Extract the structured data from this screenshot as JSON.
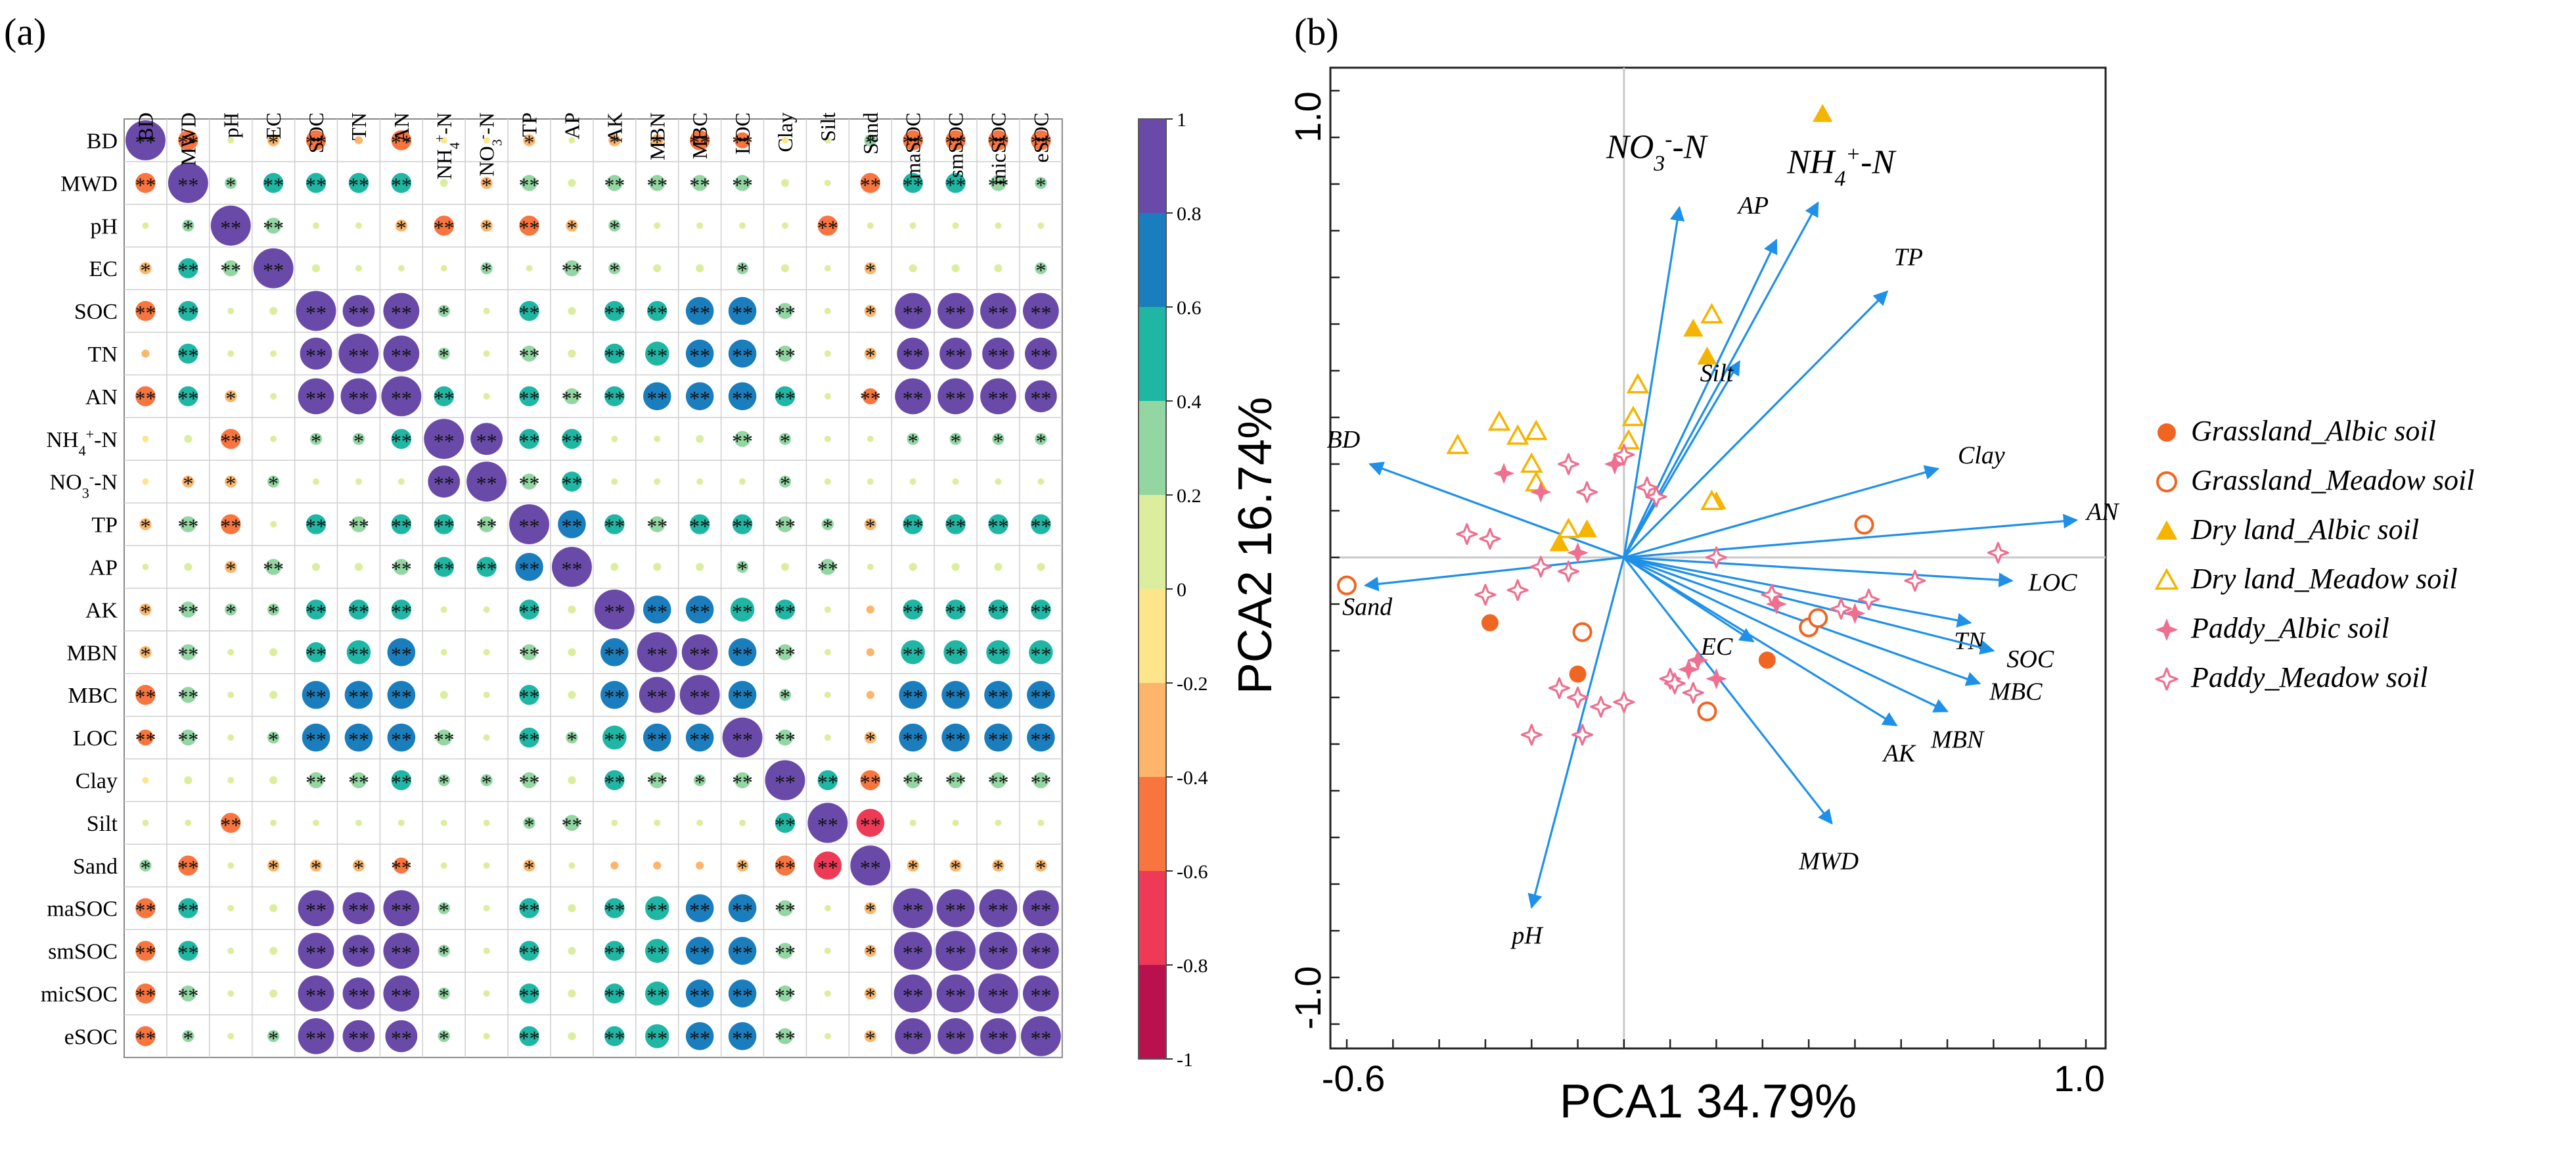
{
  "panel_a": {
    "label": "(a)",
    "variables": [
      "BD",
      "MWD",
      "pH",
      "EC",
      "SOC",
      "TN",
      "AN",
      "NH4+-N",
      "NO3--N",
      "TP",
      "AP",
      "AK",
      "MBN",
      "MBC",
      "LOC",
      "Clay",
      "Silt",
      "Sand",
      "maSOC",
      "smSOC",
      "micSOC",
      "eSOC"
    ],
    "colorbar": {
      "ticks": [
        "1",
        "0.8",
        "0.6",
        "0.4",
        "0.2",
        "0",
        "-0.2",
        "-0.4",
        "-0.6",
        "-0.8",
        "-1"
      ],
      "colors": [
        "#6a4aa8",
        "#1a7dbd",
        "#1fb7a4",
        "#93d6a2",
        "#dcee9e",
        "#fde58c",
        "#fdb56b",
        "#f9753f",
        "#ee3a56",
        "#b8114e"
      ]
    }
  },
  "panel_b": {
    "label": "(b)",
    "legend": [
      {
        "label": "Grassland_Albic soil",
        "marker": "filled-circle",
        "color": "#f06522"
      },
      {
        "label": "Grassland_Meadow soil",
        "marker": "open-circle",
        "color": "#f06522"
      },
      {
        "label": "Dry land_Albic soil",
        "marker": "filled-triangle",
        "color": "#f5b400"
      },
      {
        "label": "Dry land_Meadow soil",
        "marker": "open-triangle",
        "color": "#f5b400"
      },
      {
        "label": "Paddy_Albic soil",
        "marker": "filled-star",
        "color": "#ee6f8f"
      },
      {
        "label": "Paddy_Meadow soil",
        "marker": "open-star",
        "color": "#ee6f8f"
      }
    ]
  },
  "chart_data": [
    {
      "type": "heatmap",
      "title": "",
      "subtype": "correlation-matrix (upper/lower full)",
      "variables": [
        "BD",
        "MWD",
        "pH",
        "EC",
        "SOC",
        "TN",
        "AN",
        "NH4+-N",
        "NO3--N",
        "TP",
        "AP",
        "AK",
        "MBN",
        "MBC",
        "LOC",
        "Clay",
        "Silt",
        "Sand",
        "maSOC",
        "smSOC",
        "micSOC",
        "eSOC"
      ],
      "value_range": [
        -1,
        1
      ],
      "values": [
        [
          1,
          -0.5,
          0.1,
          -0.3,
          -0.5,
          -0.2,
          -0.5,
          -0.1,
          -0.1,
          -0.3,
          0.1,
          -0.3,
          -0.3,
          -0.5,
          -0.4,
          -0.1,
          0.1,
          0.3,
          -0.5,
          -0.5,
          -0.5,
          -0.5
        ],
        [
          -0.5,
          1,
          0.3,
          0.5,
          0.5,
          0.5,
          0.5,
          0.2,
          -0.3,
          0.4,
          0.2,
          0.4,
          0.4,
          0.4,
          0.4,
          0.2,
          0.1,
          -0.5,
          0.5,
          0.5,
          0.4,
          0.3
        ],
        [
          0.1,
          0.3,
          1,
          0.4,
          0.1,
          0.1,
          -0.3,
          -0.5,
          -0.3,
          -0.5,
          -0.3,
          0.3,
          0.1,
          0.1,
          0.1,
          0.1,
          -0.5,
          0.1,
          0.1,
          0.1,
          0.1,
          0.1
        ],
        [
          -0.3,
          0.5,
          0.4,
          1,
          0.2,
          0.1,
          0.1,
          0.1,
          0.3,
          0.1,
          0.4,
          0.3,
          0.2,
          0.2,
          0.3,
          0.2,
          0.1,
          -0.3,
          0.2,
          0.2,
          0.2,
          0.3
        ],
        [
          -0.5,
          0.5,
          0.1,
          0.2,
          1,
          0.8,
          0.9,
          0.3,
          0.1,
          0.5,
          0.2,
          0.5,
          0.5,
          0.7,
          0.7,
          0.4,
          0.1,
          -0.3,
          0.9,
          0.9,
          0.9,
          0.9
        ],
        [
          -0.2,
          0.5,
          0.1,
          0.1,
          0.8,
          1,
          0.9,
          0.3,
          0.1,
          0.4,
          0.2,
          0.5,
          0.6,
          0.7,
          0.7,
          0.4,
          0.1,
          -0.3,
          0.8,
          0.8,
          0.8,
          0.8
        ],
        [
          -0.5,
          0.5,
          -0.3,
          0.1,
          0.9,
          0.9,
          1,
          0.5,
          0.1,
          0.5,
          0.4,
          0.5,
          0.7,
          0.7,
          0.7,
          0.5,
          0.1,
          -0.4,
          0.9,
          0.9,
          0.9,
          0.8
        ],
        [
          -0.1,
          0.2,
          -0.5,
          0.1,
          0.3,
          0.3,
          0.5,
          1,
          0.8,
          0.5,
          0.5,
          0.1,
          0.1,
          0.2,
          0.4,
          0.3,
          0.1,
          0.1,
          0.3,
          0.3,
          0.3,
          0.3
        ],
        [
          -0.1,
          -0.3,
          -0.3,
          0.3,
          0.1,
          0.1,
          0.1,
          0.8,
          1,
          0.4,
          0.5,
          0.1,
          0.1,
          0.1,
          0.1,
          0.3,
          0.1,
          0.1,
          0.1,
          0.1,
          0.1,
          0.1
        ],
        [
          -0.3,
          0.4,
          -0.5,
          0.1,
          0.5,
          0.4,
          0.5,
          0.5,
          0.4,
          1,
          0.7,
          0.5,
          0.4,
          0.5,
          0.5,
          0.4,
          0.3,
          -0.3,
          0.5,
          0.5,
          0.5,
          0.5
        ],
        [
          0.1,
          0.2,
          -0.3,
          0.4,
          0.2,
          0.2,
          0.4,
          0.5,
          0.5,
          0.7,
          1,
          0.2,
          0.2,
          0.2,
          0.3,
          0.2,
          0.4,
          0.1,
          0.2,
          0.2,
          0.2,
          0.2
        ],
        [
          -0.3,
          0.4,
          0.3,
          0.3,
          0.5,
          0.5,
          0.5,
          0.1,
          0.1,
          0.5,
          0.2,
          1,
          0.7,
          0.7,
          0.6,
          0.5,
          0.1,
          -0.2,
          0.5,
          0.5,
          0.5,
          0.5
        ],
        [
          -0.3,
          0.4,
          0.1,
          0.2,
          0.5,
          0.6,
          0.7,
          0.1,
          0.1,
          0.4,
          0.2,
          0.7,
          1,
          0.9,
          0.7,
          0.4,
          0.1,
          -0.2,
          0.6,
          0.6,
          0.6,
          0.6
        ],
        [
          -0.5,
          0.4,
          0.1,
          0.2,
          0.7,
          0.7,
          0.7,
          0.2,
          0.1,
          0.5,
          0.2,
          0.7,
          0.9,
          1,
          0.7,
          0.3,
          0.1,
          -0.2,
          0.7,
          0.7,
          0.7,
          0.7
        ],
        [
          -0.4,
          0.4,
          0.1,
          0.3,
          0.7,
          0.7,
          0.7,
          0.4,
          0.1,
          0.5,
          0.3,
          0.6,
          0.7,
          0.7,
          1,
          0.4,
          0.1,
          -0.3,
          0.7,
          0.7,
          0.7,
          0.7
        ],
        [
          -0.1,
          0.2,
          0.1,
          0.2,
          0.4,
          0.4,
          0.5,
          0.3,
          0.3,
          0.4,
          0.2,
          0.5,
          0.4,
          0.3,
          0.4,
          1,
          0.5,
          -0.5,
          0.4,
          0.4,
          0.4,
          0.4
        ],
        [
          0.1,
          0.1,
          -0.5,
          0.1,
          0.1,
          0.1,
          0.1,
          0.1,
          0.1,
          0.3,
          0.4,
          0.1,
          0.1,
          0.1,
          0.1,
          0.5,
          1,
          -0.7,
          0.1,
          0.1,
          0.1,
          0.1
        ],
        [
          0.3,
          -0.5,
          0.1,
          -0.3,
          -0.3,
          -0.3,
          -0.4,
          0.1,
          0.1,
          -0.3,
          0.1,
          -0.2,
          -0.2,
          -0.2,
          -0.3,
          -0.5,
          -0.7,
          1,
          -0.3,
          -0.3,
          -0.3,
          -0.3
        ],
        [
          -0.5,
          0.5,
          0.1,
          0.2,
          0.9,
          0.8,
          0.9,
          0.3,
          0.1,
          0.5,
          0.2,
          0.5,
          0.6,
          0.7,
          0.7,
          0.4,
          0.1,
          -0.3,
          1,
          0.95,
          0.95,
          0.9
        ],
        [
          -0.5,
          0.5,
          0.1,
          0.2,
          0.9,
          0.8,
          0.9,
          0.3,
          0.1,
          0.5,
          0.2,
          0.5,
          0.6,
          0.7,
          0.7,
          0.4,
          0.1,
          -0.3,
          0.95,
          1,
          0.95,
          0.9
        ],
        [
          -0.5,
          0.4,
          0.1,
          0.2,
          0.9,
          0.8,
          0.9,
          0.3,
          0.1,
          0.5,
          0.2,
          0.5,
          0.6,
          0.7,
          0.7,
          0.4,
          0.1,
          -0.3,
          0.95,
          0.95,
          1,
          0.9
        ],
        [
          -0.5,
          0.3,
          0.1,
          0.3,
          0.9,
          0.8,
          0.8,
          0.3,
          0.1,
          0.5,
          0.2,
          0.5,
          0.6,
          0.7,
          0.7,
          0.4,
          0.1,
          -0.3,
          0.9,
          0.9,
          0.9,
          1
        ]
      ],
      "significance_marks": [
        "*",
        "**"
      ],
      "legend": "right colorbar"
    },
    {
      "type": "scatter",
      "subtype": "PCA biplot",
      "xlabel": "PCA1 34.79%",
      "ylabel": "PCA2 16.74%",
      "xlim": [
        -0.6,
        1.0
      ],
      "ylim": [
        -1.0,
        1.0
      ],
      "x_ticks": [
        "-0.6",
        "1.0"
      ],
      "y_ticks": [
        "1.0",
        "-1.0"
      ],
      "loadings": [
        {
          "name": "BD",
          "x": -0.55,
          "y": 0.2
        },
        {
          "name": "Sand",
          "x": -0.56,
          "y": -0.06
        },
        {
          "name": "pH",
          "x": -0.2,
          "y": -0.75
        },
        {
          "name": "NO3--N",
          "x": 0.12,
          "y": 0.75
        },
        {
          "name": "NH4+-N",
          "x": 0.42,
          "y": 0.76
        },
        {
          "name": "AP",
          "x": 0.33,
          "y": 0.68
        },
        {
          "name": "TP",
          "x": 0.57,
          "y": 0.57
        },
        {
          "name": "Silt",
          "x": 0.25,
          "y": 0.42
        },
        {
          "name": "Clay",
          "x": 0.68,
          "y": 0.19
        },
        {
          "name": "AN",
          "x": 0.98,
          "y": 0.08
        },
        {
          "name": "LOC",
          "x": 0.84,
          "y": -0.05
        },
        {
          "name": "TN",
          "x": 0.75,
          "y": -0.14
        },
        {
          "name": "SOC",
          "x": 0.8,
          "y": -0.2
        },
        {
          "name": "MBC",
          "x": 0.77,
          "y": -0.27
        },
        {
          "name": "MBN",
          "x": 0.7,
          "y": -0.33
        },
        {
          "name": "AK",
          "x": 0.59,
          "y": -0.36
        },
        {
          "name": "EC",
          "x": 0.28,
          "y": -0.18
        },
        {
          "name": "MWD",
          "x": 0.45,
          "y": -0.57
        }
      ],
      "scores": [
        {
          "group": "Grassland_Albic soil",
          "points": [
            [
              -0.29,
              -0.14
            ],
            [
              -0.1,
              -0.25
            ],
            [
              0.31,
              -0.22
            ]
          ]
        },
        {
          "group": "Grassland_Meadow soil",
          "points": [
            [
              -0.6,
              -0.06
            ],
            [
              -0.09,
              -0.16
            ],
            [
              0.18,
              -0.33
            ],
            [
              0.4,
              -0.15
            ],
            [
              0.42,
              -0.13
            ],
            [
              0.52,
              0.07
            ]
          ]
        },
        {
          "group": "Dry land_Albic soil",
          "points": [
            [
              0.43,
              0.95
            ],
            [
              0.15,
              0.49
            ],
            [
              0.18,
              0.43
            ],
            [
              0.2,
              0.12
            ],
            [
              -0.14,
              0.03
            ],
            [
              -0.08,
              0.06
            ]
          ]
        },
        {
          "group": "Dry land_Meadow soil",
          "points": [
            [
              0.19,
              0.52
            ],
            [
              0.03,
              0.37
            ],
            [
              0.02,
              0.3
            ],
            [
              0.01,
              0.25
            ],
            [
              -0.27,
              0.29
            ],
            [
              -0.19,
              0.27
            ],
            [
              -0.23,
              0.26
            ],
            [
              -0.36,
              0.24
            ],
            [
              -0.2,
              0.2
            ],
            [
              -0.19,
              0.16
            ],
            [
              0.19,
              0.12
            ],
            [
              -0.12,
              0.06
            ]
          ]
        },
        {
          "group": "Paddy_Albic soil",
          "points": [
            [
              -0.26,
              0.18
            ],
            [
              -0.18,
              0.14
            ],
            [
              -0.02,
              0.2
            ],
            [
              -0.1,
              0.01
            ],
            [
              0.16,
              -0.22
            ],
            [
              0.14,
              -0.24
            ],
            [
              0.2,
              -0.26
            ],
            [
              0.33,
              -0.1
            ],
            [
              0.5,
              -0.12
            ]
          ]
        },
        {
          "group": "Paddy_Meadow soil",
          "points": [
            [
              -0.34,
              0.05
            ],
            [
              -0.29,
              0.04
            ],
            [
              -0.3,
              -0.08
            ],
            [
              -0.23,
              -0.07
            ],
            [
              -0.18,
              -0.02
            ],
            [
              -0.12,
              -0.03
            ],
            [
              -0.1,
              -0.3
            ],
            [
              -0.2,
              -0.38
            ],
            [
              -0.14,
              -0.28
            ],
            [
              -0.05,
              -0.32
            ],
            [
              0.0,
              -0.31
            ],
            [
              0.1,
              -0.26
            ],
            [
              0.15,
              -0.29
            ],
            [
              0.05,
              0.15
            ],
            [
              0.0,
              0.22
            ],
            [
              0.07,
              0.13
            ],
            [
              0.2,
              0.0
            ],
            [
              0.32,
              -0.08
            ],
            [
              0.47,
              -0.11
            ],
            [
              0.53,
              -0.09
            ],
            [
              0.63,
              -0.05
            ],
            [
              0.81,
              0.01
            ],
            [
              -0.12,
              0.2
            ],
            [
              -0.08,
              0.14
            ],
            [
              0.11,
              -0.27
            ],
            [
              -0.09,
              -0.38
            ]
          ]
        }
      ]
    }
  ]
}
